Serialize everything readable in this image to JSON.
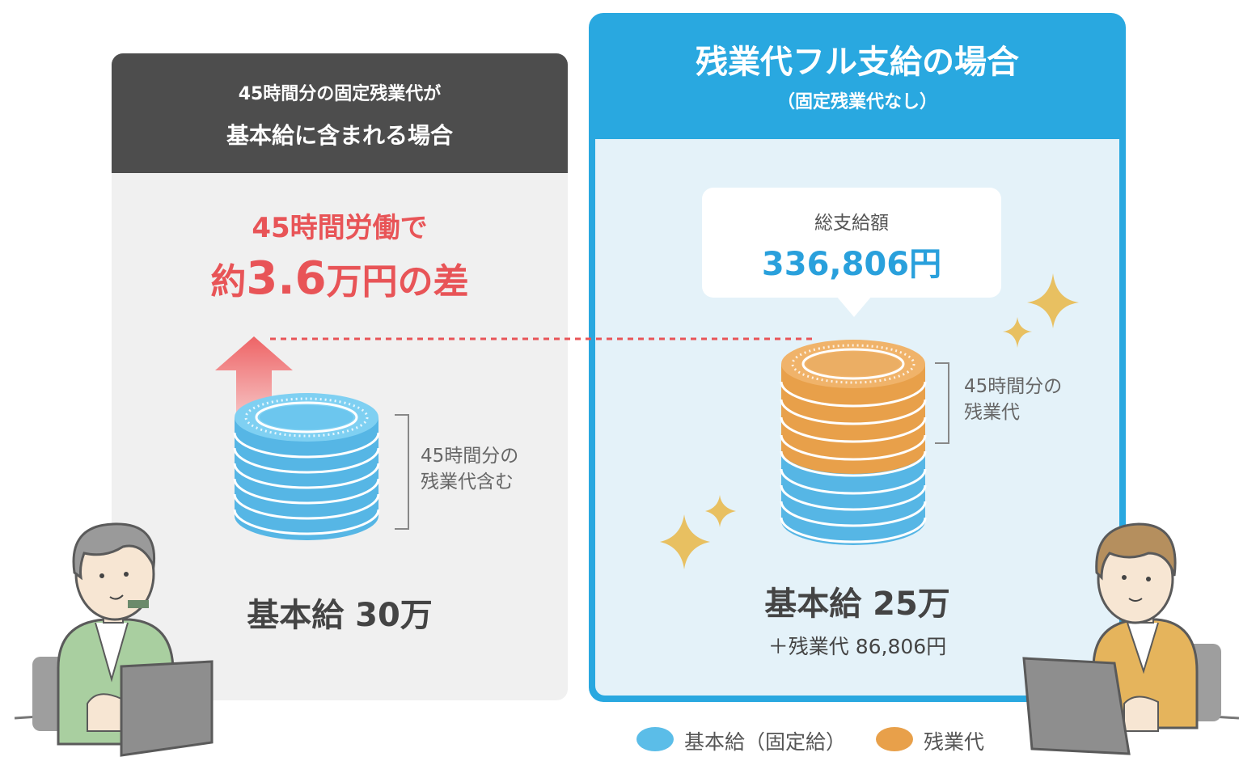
{
  "left": {
    "header_line1": "45時間分の固定残業代が",
    "header_line2": "基本給に含まれる場合",
    "diff_line1": "45時間労働で",
    "diff_prefix": "約",
    "diff_amount": "3.6",
    "diff_suffix": "万円の差",
    "bracket_line1": "45時間分の",
    "bracket_line2": "残業代含む",
    "salary": "基本給 30万"
  },
  "right": {
    "title": "残業代フル支給の場合",
    "subtitle": "（固定残業代なし）",
    "bubble_label": "総支給額",
    "bubble_amount": "336,806円",
    "bracket_line1": "45時間分の",
    "bracket_line2": "残業代",
    "salary": "基本給 25万",
    "overtime_line": "＋残業代  86,806円"
  },
  "legend": {
    "base_label": "基本給（固定給）",
    "overtime_label": "残業代"
  },
  "colors": {
    "base_coin": "#5bbde8",
    "overtime_coin": "#e8a04a",
    "accent_red": "#e85457",
    "accent_blue": "#29a8e0",
    "sparkle": "#e8c061"
  }
}
